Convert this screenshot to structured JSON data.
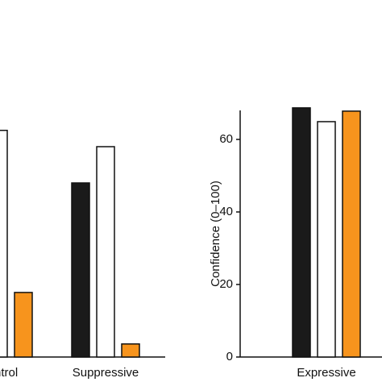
{
  "chart_data": [
    {
      "type": "bar",
      "categories": [
        "Control",
        "Suppressive"
      ],
      "series": [
        {
          "color": "#1a1a1a",
          "values": [
            null,
            48
          ]
        },
        {
          "color": "#ffffff",
          "values": [
            62.5,
            58
          ]
        },
        {
          "color": "#f7941d",
          "values": [
            17.8,
            3.6
          ]
        }
      ],
      "ylim": [
        0,
        68
      ]
    },
    {
      "type": "bar",
      "categories": [
        "Expressive"
      ],
      "series": [
        {
          "color": "#1a1a1a",
          "values": [
            68.7
          ]
        },
        {
          "color": "#ffffff",
          "values": [
            64.9
          ]
        },
        {
          "color": "#f7941d",
          "values": [
            67.8
          ]
        }
      ],
      "y_label": "Confidence (0–100)",
      "ylim": [
        0,
        68
      ],
      "yticks": [
        0,
        20,
        40,
        60
      ]
    }
  ]
}
